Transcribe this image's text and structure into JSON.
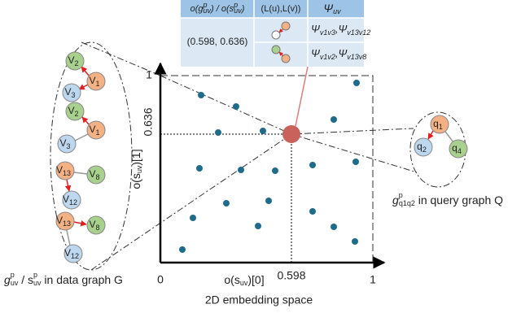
{
  "plot": {
    "x_label": {
      "base": "o(s",
      "sub": "uv",
      "end": ")[0]"
    },
    "y_label": {
      "base": "o(s",
      "sub": "uv",
      "end": ")[1]"
    },
    "caption": "2D embedding space",
    "x_ticks": [
      "0",
      "0.598",
      "1"
    ],
    "y_ticks": [
      "1",
      "0.636"
    ]
  },
  "table": {
    "header": [
      {
        "a": "o(g",
        "a_sup": "p",
        "a_sub": "uv",
        "b": ") / o(s",
        "b_sup": "p",
        "b_sub": "uv",
        "c": ")"
      },
      "(L(u),L(v))",
      {
        "base": "Ψ",
        "sub": "uv"
      }
    ],
    "value": "(0.598, 0.636)",
    "rows": [
      [
        {
          "base": "Ψ",
          "sub": "v1v3"
        },
        {
          "base": "Ψ",
          "sub": "v13v12"
        }
      ],
      [
        {
          "base": "Ψ",
          "sub": "v1v2"
        },
        {
          "base": "Ψ",
          "sub": "v13v8"
        }
      ]
    ]
  },
  "data_graph": {
    "nodes": [
      {
        "name": "V",
        "sub": "2"
      },
      {
        "name": "V",
        "sub": "1"
      },
      {
        "name": "V",
        "sub": "3"
      },
      {
        "name": "V",
        "sub": "2"
      },
      {
        "name": "V",
        "sub": "1"
      },
      {
        "name": "V",
        "sub": "3"
      },
      {
        "name": "V",
        "sub": "13"
      },
      {
        "name": "V",
        "sub": "8"
      },
      {
        "name": "V",
        "sub": "12"
      },
      {
        "name": "V",
        "sub": "13"
      },
      {
        "name": "V",
        "sub": "8"
      },
      {
        "name": "V",
        "sub": "12"
      }
    ],
    "caption": {
      "g": "g",
      "sup1": "p",
      "sub1": "uv",
      "mid": " / s",
      "sup2": "p",
      "sub2": "uv",
      "end": " in data graph G"
    }
  },
  "query_graph": {
    "nodes": [
      {
        "name": "q",
        "sub": "1"
      },
      {
        "name": "q",
        "sub": "2"
      },
      {
        "name": "q",
        "sub": "4"
      }
    ],
    "caption": {
      "g": "g",
      "sup": "p",
      "sub": "q1q2",
      "end": " in query graph Q"
    }
  }
}
